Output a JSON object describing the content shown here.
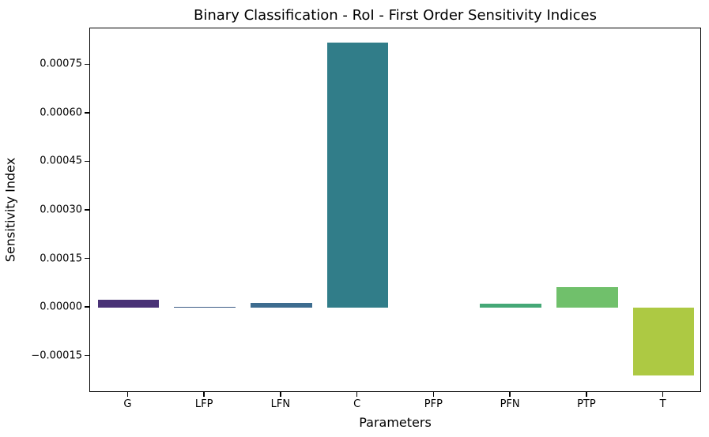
{
  "chart_data": {
    "type": "bar",
    "title": "Binary Classification - RoI - First Order Sensitivity Indices",
    "xlabel": "Parameters",
    "ylabel": "Sensitivity Index",
    "categories": [
      "G",
      "LFP",
      "LFN",
      "C",
      "PFP",
      "PFN",
      "PTP",
      "T"
    ],
    "values": [
      2.5e-05,
      3e-06,
      1.6e-05,
      0.000818,
      0.0,
      1.3e-05,
      6.3e-05,
      -0.000209
    ],
    "bar_colors": [
      "#493276",
      "#3e5c87",
      "#3d6c8f",
      "#317d89",
      "#2f9e8a",
      "#45a876",
      "#70c06b",
      "#adc943"
    ],
    "palette": "viridis (desaturated)",
    "ylim": [
      -0.000263,
      0.000863
    ],
    "yticks": [
      0.00075,
      0.0006,
      0.00045,
      0.0003,
      0.00015,
      0.0,
      -0.00015
    ],
    "ytick_labels": [
      "0.00075",
      "0.00060",
      "0.00045",
      "0.00030",
      "0.00015",
      "0.00000",
      "−0.00015"
    ],
    "grid": false,
    "legend_position": "none",
    "bar_width_fraction": 0.8,
    "axis_color": "#000000",
    "background_color": "#ffffff"
  }
}
